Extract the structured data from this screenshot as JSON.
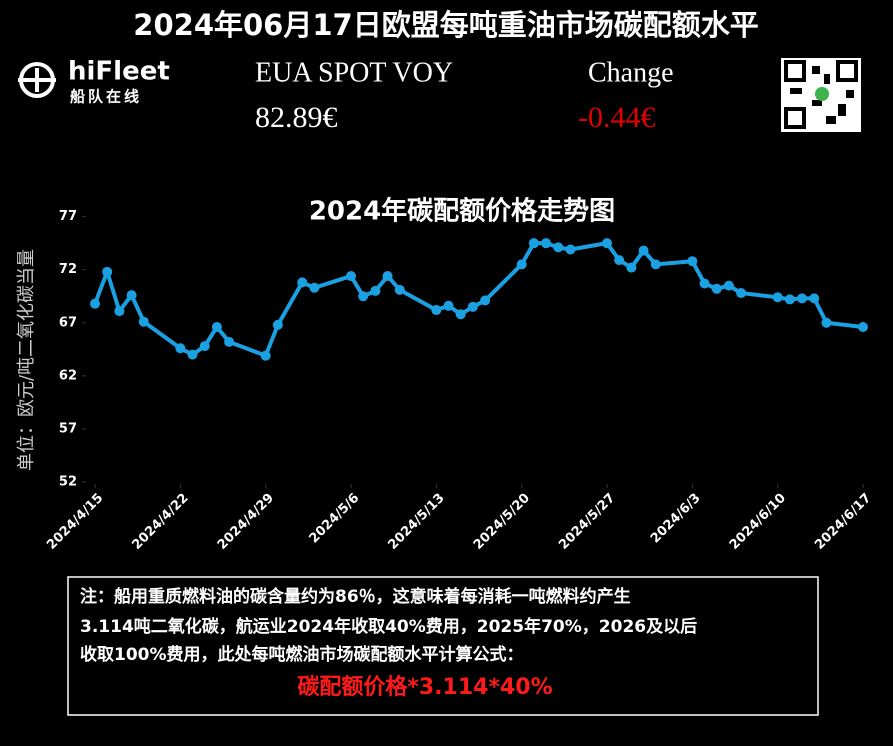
{
  "header": {
    "title": "2024年06月17日欧盟每吨重油市场碳配额水平",
    "logo_text": "hiFleet",
    "logo_sub": "船队在线"
  },
  "price": {
    "label": "EUA SPOT VOY",
    "value": "82.89€",
    "change_label": "Change",
    "change_value": "-0.44€"
  },
  "chart_data": {
    "type": "line",
    "title": "2024年碳配额价格走势图",
    "y_label": "单位：欧元/吨二氧化碳当量",
    "color": "#1ba1e2",
    "grid": false,
    "x": [
      "2024/4/15",
      "2024/4/16",
      "2024/4/17",
      "2024/4/18",
      "2024/4/19",
      "2024/4/22",
      "2024/4/23",
      "2024/4/24",
      "2024/4/25",
      "2024/4/26",
      "2024/4/29",
      "2024/4/30",
      "2024/5/2",
      "2024/5/3",
      "2024/5/6",
      "2024/5/7",
      "2024/5/8",
      "2024/5/9",
      "2024/5/10",
      "2024/5/13",
      "2024/5/14",
      "2024/5/15",
      "2024/5/16",
      "2024/5/17",
      "2024/5/20",
      "2024/5/21",
      "2024/5/22",
      "2024/5/23",
      "2024/5/24",
      "2024/5/27",
      "2024/5/28",
      "2024/5/29",
      "2024/5/30",
      "2024/5/31",
      "2024/6/3",
      "2024/6/4",
      "2024/6/5",
      "2024/6/6",
      "2024/6/7",
      "2024/6/10",
      "2024/6/11",
      "2024/6/12",
      "2024/6/13",
      "2024/6/14",
      "2024/6/17"
    ],
    "values": [
      68.8,
      71.8,
      68.1,
      69.6,
      67.1,
      64.6,
      64.0,
      64.8,
      66.6,
      65.2,
      63.9,
      66.8,
      70.8,
      70.3,
      71.4,
      69.5,
      70.0,
      71.4,
      70.1,
      68.2,
      68.6,
      67.8,
      68.5,
      69.1,
      72.5,
      74.5,
      74.5,
      74.1,
      73.9,
      74.5,
      72.9,
      72.2,
      73.8,
      72.5,
      72.8,
      70.7,
      70.2,
      70.5,
      69.8,
      69.4,
      69.2,
      69.3,
      69.3,
      67.0,
      66.6
    ],
    "xlim": [
      "2024/4/15",
      "2024/6/17"
    ],
    "xticks": [
      "2024/4/15",
      "2024/4/22",
      "2024/4/29",
      "2024/5/6",
      "2024/5/13",
      "2024/5/20",
      "2024/5/27",
      "2024/6/3",
      "2024/6/10",
      "2024/6/17"
    ],
    "ylim": [
      52,
      78
    ],
    "yticks": [
      52,
      57,
      62,
      67,
      72,
      77
    ]
  },
  "note": {
    "lines": [
      "注：船用重质燃料油的碳含量约为86％，这意味着每消耗一吨燃料约产生",
      "3.114吨二氧化碳，航运业2024年收取40%费用，2025年70%，2026及以后",
      "收取100%费用，此处每吨燃油市场碳配额水平计算公式："
    ],
    "formula": "碳配额价格*3.114*40%"
  }
}
